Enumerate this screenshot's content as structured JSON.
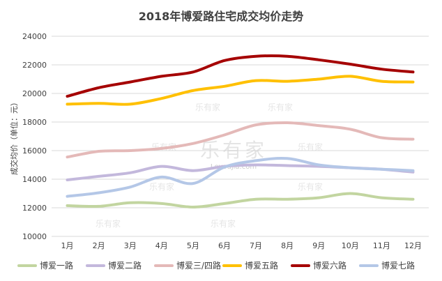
{
  "chart_data": {
    "type": "line",
    "title": "2018年博爱路住宅成交均价走势",
    "ylabel": "成交均价（单位：元）",
    "xlabel": "",
    "categories": [
      "1月",
      "2月",
      "3月",
      "4月",
      "5月",
      "6月",
      "7月",
      "8月",
      "9月",
      "10月",
      "11月",
      "12月"
    ],
    "ylim": [
      10000,
      24000
    ],
    "yticks": [
      10000,
      12000,
      14000,
      16000,
      18000,
      20000,
      22000,
      24000
    ],
    "grid": true,
    "smooth": true,
    "legend_position": "bottom",
    "series": [
      {
        "name": "博爱一路",
        "color": "#c2d5a0",
        "values": [
          12150,
          12100,
          12350,
          12300,
          12050,
          12300,
          12600,
          12600,
          12700,
          13000,
          12700,
          12600
        ]
      },
      {
        "name": "博爱二路",
        "color": "#c3b8dc",
        "values": [
          13950,
          14200,
          14450,
          14900,
          14600,
          14900,
          15000,
          14950,
          14900,
          14800,
          14700,
          14500
        ]
      },
      {
        "name": "博爱三/四路",
        "color": "#e4b9b8",
        "values": [
          15550,
          15950,
          16000,
          16150,
          16500,
          17100,
          17800,
          17950,
          17750,
          17500,
          16900,
          16800
        ]
      },
      {
        "name": "博爱五路",
        "color": "#ffc000",
        "values": [
          19250,
          19300,
          19250,
          19650,
          20200,
          20500,
          20900,
          20850,
          21000,
          21200,
          20850,
          20800
        ]
      },
      {
        "name": "博爱六路",
        "color": "#a50000",
        "values": [
          19800,
          20400,
          20800,
          21200,
          21500,
          22300,
          22600,
          22600,
          22350,
          22050,
          21700,
          21500
        ]
      },
      {
        "name": "博爱七路",
        "color": "#b4c7e7",
        "values": [
          12800,
          13050,
          13450,
          14150,
          13700,
          14850,
          15300,
          15450,
          15000,
          14800,
          14700,
          14600
        ]
      }
    ]
  },
  "watermark": {
    "brand": "乐有家",
    "url": "Leyoujia.com"
  }
}
